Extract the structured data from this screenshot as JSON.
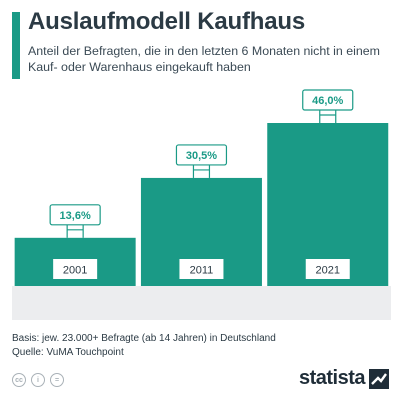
{
  "title": "Auslaufmodell Kaufhaus",
  "subtitle": "Anteil der Befragten, die in den letzten 6 Monaten nicht in einem Kauf- oder Warenhaus eingekauft haben",
  "colors": {
    "accent": "#1a9a86",
    "bar": "#1a9a86",
    "floor": "#ecedef",
    "text": "#2b3a44"
  },
  "chart_data": {
    "type": "bar",
    "categories": [
      "2001",
      "2011",
      "2021"
    ],
    "values": [
      13.6,
      30.5,
      46.0
    ],
    "value_labels": [
      "13,6%",
      "30,5%",
      "46,0%"
    ],
    "unit": "%",
    "ylim": [
      0,
      50
    ],
    "grid": false,
    "legend": "none"
  },
  "footer": {
    "basis": "Basis: jew. 23.000+ Befragte (ab 14 Jahren) in Deutschland",
    "source": "Quelle: VuMA Touchpoint",
    "icons": [
      "cc-icon",
      "person-icon",
      "equals-icon"
    ],
    "logo_text": "statista"
  }
}
